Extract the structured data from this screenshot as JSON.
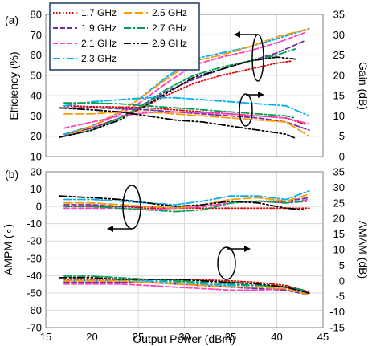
{
  "chart_data": [
    {
      "panel_label": "(a)",
      "type": "line",
      "xlabel": "",
      "ylabel_left": "Efficiency (%)",
      "ylabel_right": "Gain (dB)",
      "xlim": [
        15,
        45
      ],
      "xticks": [
        15,
        20,
        25,
        30,
        35,
        40,
        45
      ],
      "ylim_left": [
        10,
        80
      ],
      "yticks_left": [
        10,
        20,
        30,
        40,
        50,
        60,
        70,
        80
      ],
      "ylim_right": [
        0,
        35
      ],
      "yticks_right": [
        0,
        5,
        10,
        15,
        20,
        25,
        30,
        35
      ],
      "grid": true,
      "legend_position": "top-left",
      "legend": [
        "1.7 GHz",
        "2.5 GHz",
        "1.9 GHz",
        "2.7 GHz",
        "2.1 GHz",
        "2.9 GHz",
        "2.3 GHz"
      ],
      "annotations": [
        "arrow: efficiency curves → left axis",
        "arrow: gain curves → right axis"
      ],
      "series": [
        {
          "name": "1.7 GHz",
          "color": "#e00000",
          "dash": "dotted",
          "metric": "Efficiency",
          "axis": "left",
          "x": [
            17,
            20,
            23,
            25,
            28,
            31,
            34,
            37,
            40,
            41.5
          ],
          "y": [
            21,
            24,
            29,
            33,
            40,
            46,
            50,
            53,
            56,
            57
          ]
        },
        {
          "name": "1.9 GHz",
          "color": "#7030a0",
          "dash": "dashed",
          "metric": "Efficiency",
          "axis": "left",
          "x": [
            17,
            20,
            23,
            25,
            28,
            31,
            34,
            37,
            40,
            43
          ],
          "y": [
            21,
            24,
            29,
            34,
            42,
            48,
            53,
            57,
            61,
            67
          ]
        },
        {
          "name": "2.1 GHz",
          "color": "#ff3fbf",
          "dash": "dashed",
          "metric": "Efficiency",
          "axis": "left",
          "x": [
            17,
            20,
            23,
            25,
            28,
            31,
            34,
            37,
            40,
            43
          ],
          "y": [
            21,
            25,
            31,
            36,
            46,
            55,
            59,
            62,
            66,
            71
          ]
        },
        {
          "name": "2.3 GHz",
          "color": "#00b0f0",
          "dash": "dashdot",
          "metric": "Efficiency",
          "axis": "left",
          "x": [
            17,
            20,
            23,
            25,
            28,
            31,
            34,
            37,
            40,
            43.5
          ],
          "y": [
            21,
            25,
            32,
            38,
            49,
            58,
            61,
            64,
            68,
            73
          ]
        },
        {
          "name": "2.5 GHz",
          "color": "#ff9900",
          "dash": "longdash",
          "metric": "Efficiency",
          "axis": "left",
          "x": [
            17,
            20,
            23,
            25,
            28,
            31,
            34,
            37,
            40,
            43.5
          ],
          "y": [
            20,
            25,
            32,
            38,
            48,
            57,
            60,
            64,
            69,
            73
          ]
        },
        {
          "name": "2.7 GHz",
          "color": "#00a050",
          "dash": "dashdot",
          "metric": "Efficiency",
          "axis": "left",
          "x": [
            17,
            20,
            23,
            25,
            28,
            31,
            34,
            37,
            40,
            42
          ],
          "y": [
            20,
            23,
            29,
            34,
            43,
            50,
            54,
            57,
            60,
            63
          ]
        },
        {
          "name": "2.9 GHz",
          "color": "#000000",
          "dash": "dashdotdot",
          "metric": "Efficiency",
          "axis": "left",
          "x": [
            16.5,
            20,
            23,
            25,
            28,
            31,
            34,
            37,
            40,
            42
          ],
          "y": [
            19.5,
            23,
            28,
            33,
            41,
            49,
            53,
            57,
            59,
            58
          ]
        },
        {
          "name": "1.7 GHz",
          "color": "#e00000",
          "dash": "dotted",
          "metric": "Gain",
          "axis": "right",
          "x": [
            17,
            20,
            23,
            26,
            29,
            32,
            35,
            38,
            41,
            43
          ],
          "y": [
            12.5,
            12.3,
            12.2,
            12,
            11.5,
            11,
            10.5,
            10,
            9.5,
            8
          ]
        },
        {
          "name": "1.9 GHz",
          "color": "#7030a0",
          "dash": "dashed",
          "metric": "Gain",
          "axis": "right",
          "x": [
            17,
            20,
            23,
            26,
            29,
            32,
            35,
            38,
            41,
            43.5
          ],
          "y": [
            12,
            12,
            11.8,
            11.5,
            11,
            10.5,
            10,
            9.5,
            8.5,
            6.5
          ]
        },
        {
          "name": "2.1 GHz",
          "color": "#ff3fbf",
          "dash": "dashed",
          "metric": "Gain",
          "axis": "right",
          "x": [
            17,
            20,
            23,
            26,
            29,
            32,
            35,
            38,
            41,
            43.5
          ],
          "y": [
            7,
            8.5,
            10,
            10.8,
            11,
            10.8,
            10.5,
            10,
            9.5,
            8
          ]
        },
        {
          "name": "2.3 GHz",
          "color": "#00b0f0",
          "dash": "dashdot",
          "metric": "Gain",
          "axis": "right",
          "x": [
            17,
            20,
            23,
            26,
            29,
            32,
            35,
            38,
            41,
            43.5
          ],
          "y": [
            12.5,
            13.5,
            14,
            14.5,
            14.5,
            14,
            13.5,
            13,
            12.5,
            10
          ]
        },
        {
          "name": "2.5 GHz",
          "color": "#ff9900",
          "dash": "longdash",
          "metric": "Gain",
          "axis": "right",
          "x": [
            17,
            20,
            23,
            26,
            29,
            32,
            35,
            38,
            41,
            43.5
          ],
          "y": [
            10.5,
            10.5,
            11,
            11,
            10.5,
            10,
            9.5,
            9,
            8.5,
            5
          ]
        },
        {
          "name": "2.7 GHz",
          "color": "#00a050",
          "dash": "dashdot",
          "metric": "Gain",
          "axis": "right",
          "x": [
            17,
            20,
            23,
            26,
            29,
            32,
            35,
            38,
            41,
            42
          ],
          "y": [
            13.2,
            13.2,
            13,
            12.5,
            12,
            11.5,
            11,
            10.5,
            10,
            9.5
          ]
        },
        {
          "name": "2.9 GHz",
          "color": "#000000",
          "dash": "dashdotdot",
          "metric": "Gain",
          "axis": "right",
          "x": [
            16.5,
            20,
            23,
            26,
            29,
            32,
            35,
            38,
            41,
            42
          ],
          "y": [
            12,
            11.5,
            11,
            10,
            9,
            8.5,
            7.5,
            6.5,
            5.5,
            4.5
          ]
        }
      ]
    },
    {
      "panel_label": "(b)",
      "type": "line",
      "xlabel": "Output Power (dBm)",
      "ylabel_left": "AMPM (∘)",
      "ylabel_right": "AMAM (dB)",
      "xlim": [
        15,
        45
      ],
      "xticks": [
        15,
        20,
        25,
        30,
        35,
        40,
        45
      ],
      "ylim_left": [
        -70,
        20
      ],
      "yticks_left": [
        -70,
        -60,
        -50,
        -40,
        -30,
        -20,
        -10,
        0,
        10,
        20
      ],
      "ylim_right": [
        -15,
        35
      ],
      "yticks_right": [
        -15,
        -10,
        -5,
        0,
        5,
        10,
        15,
        20,
        25,
        30,
        35
      ],
      "grid": true,
      "annotations": [
        "arrow: AMPM curves → left axis",
        "arrow: AMAM curves → right axis"
      ],
      "series": [
        {
          "name": "1.7 GHz",
          "color": "#e00000",
          "dash": "dotted",
          "metric": "AMPM",
          "axis": "left",
          "x": [
            17,
            20,
            23,
            26,
            29,
            32,
            35,
            38,
            41,
            43.5
          ],
          "y": [
            0,
            0,
            0,
            -1,
            -1,
            -1,
            -1,
            -1,
            -1,
            -1
          ]
        },
        {
          "name": "1.9 GHz",
          "color": "#7030a0",
          "dash": "dashed",
          "metric": "AMPM",
          "axis": "left",
          "x": [
            17,
            20,
            23,
            26,
            29,
            32,
            35,
            38,
            41,
            43.5
          ],
          "y": [
            1,
            1,
            0,
            0,
            -1,
            0,
            2,
            3,
            3,
            5
          ]
        },
        {
          "name": "2.1 GHz",
          "color": "#ff3fbf",
          "dash": "dashed",
          "metric": "AMPM",
          "axis": "left",
          "x": [
            17,
            20,
            23,
            26,
            29,
            32,
            35,
            38,
            41,
            43.5
          ],
          "y": [
            -1,
            -1,
            -1,
            -2,
            -1,
            0,
            2,
            3,
            2,
            4
          ]
        },
        {
          "name": "2.3 GHz",
          "color": "#00b0f0",
          "dash": "dashdot",
          "metric": "AMPM",
          "axis": "left",
          "x": [
            17,
            20,
            23,
            26,
            29,
            32,
            35,
            38,
            41,
            43.5
          ],
          "y": [
            4,
            4,
            3,
            2,
            1,
            3,
            6,
            6,
            4,
            9
          ]
        },
        {
          "name": "2.5 GHz",
          "color": "#ff9900",
          "dash": "longdash",
          "metric": "AMPM",
          "axis": "left",
          "x": [
            17,
            20,
            23,
            26,
            29,
            32,
            35,
            38,
            41,
            43.5
          ],
          "y": [
            2,
            2,
            1,
            0,
            -1,
            1,
            4,
            5,
            3,
            7
          ]
        },
        {
          "name": "2.7 GHz",
          "color": "#00a050",
          "dash": "dashdot",
          "metric": "AMPM",
          "axis": "left",
          "x": [
            17,
            20,
            23,
            26,
            29,
            32,
            35,
            38,
            41,
            43.5
          ],
          "y": [
            0,
            0,
            -1,
            -2,
            -3,
            -2,
            2,
            3,
            2,
            3
          ]
        },
        {
          "name": "2.9 GHz",
          "color": "#000000",
          "dash": "dashdotdot",
          "metric": "AMPM",
          "axis": "left",
          "x": [
            16.5,
            20,
            23,
            26,
            29,
            32,
            35,
            38,
            41,
            43
          ],
          "y": [
            6,
            5,
            4,
            2,
            0,
            1,
            3,
            2,
            -1,
            -2
          ]
        },
        {
          "name": "1.7 GHz",
          "color": "#e00000",
          "dash": "dotted",
          "metric": "AMAM",
          "axis": "right",
          "x": [
            17,
            20,
            23,
            26,
            29,
            32,
            35,
            38,
            41,
            43.5
          ],
          "y": [
            0.5,
            0.5,
            0.5,
            0.5,
            0.5,
            0.3,
            0,
            -0.5,
            -1.5,
            -3.5
          ]
        },
        {
          "name": "1.9 GHz",
          "color": "#7030a0",
          "dash": "dashed",
          "metric": "AMAM",
          "axis": "right",
          "x": [
            17,
            20,
            23,
            26,
            29,
            32,
            35,
            38,
            41,
            43.5
          ],
          "y": [
            -0.5,
            -0.5,
            -0.5,
            -0.5,
            -1,
            -1.5,
            -2,
            -2.5,
            -3,
            -4.5
          ]
        },
        {
          "name": "2.1 GHz",
          "color": "#ff3fbf",
          "dash": "dashed",
          "metric": "AMAM",
          "axis": "right",
          "x": [
            17,
            20,
            23,
            26,
            29,
            32,
            35,
            38,
            41,
            43.5
          ],
          "y": [
            -1,
            -1,
            -1,
            -1.5,
            -2,
            -2.5,
            -3,
            -3,
            -2.5,
            -4
          ]
        },
        {
          "name": "2.3 GHz",
          "color": "#00b0f0",
          "dash": "dashdot",
          "metric": "AMAM",
          "axis": "right",
          "x": [
            17,
            20,
            23,
            26,
            29,
            32,
            35,
            38,
            41,
            43.5
          ],
          "y": [
            0,
            0,
            0,
            0,
            -0.5,
            -1,
            -1.5,
            -1.5,
            -2,
            -3.5
          ]
        },
        {
          "name": "2.5 GHz",
          "color": "#ff9900",
          "dash": "longdash",
          "metric": "AMAM",
          "axis": "right",
          "x": [
            17,
            20,
            23,
            26,
            29,
            32,
            35,
            38,
            41,
            43.5
          ],
          "y": [
            0,
            0,
            0,
            -0.5,
            -1,
            -1.5,
            -2,
            -2,
            -2.5,
            -4.5
          ]
        },
        {
          "name": "2.7 GHz",
          "color": "#00a050",
          "dash": "dashdot",
          "metric": "AMAM",
          "axis": "right",
          "x": [
            17,
            20,
            23,
            26,
            29,
            32,
            35,
            38,
            41,
            43
          ],
          "y": [
            1.5,
            1.5,
            1,
            0.5,
            0,
            -0.5,
            -1,
            -1.5,
            -2,
            -3
          ]
        },
        {
          "name": "2.9 GHz",
          "color": "#000000",
          "dash": "dashdotdot",
          "metric": "AMAM",
          "axis": "right",
          "x": [
            16.5,
            20,
            23,
            26,
            29,
            32,
            35,
            38,
            41,
            43.5
          ],
          "y": [
            1,
            1,
            0.5,
            0.5,
            0.5,
            0,
            -0.5,
            -1,
            -2,
            -4
          ]
        }
      ]
    }
  ]
}
